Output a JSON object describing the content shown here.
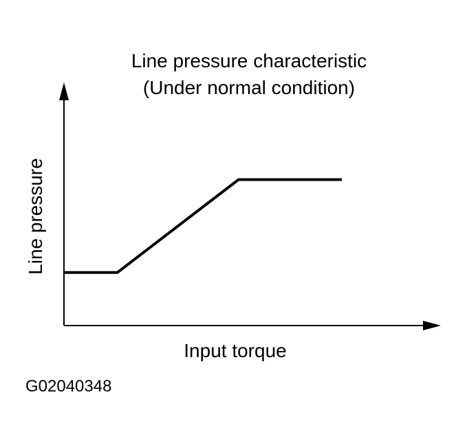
{
  "chart_data": {
    "type": "line",
    "title": "Line pressure characteristic",
    "subtitle": "(Under normal condition)",
    "xlabel": "Input torque",
    "ylabel": "Line pressure",
    "grid": false,
    "axes_have_arrows": true,
    "ticks": "none",
    "xlim": [
      0,
      100
    ],
    "ylim": [
      0,
      100
    ],
    "series": [
      {
        "x": [
          0,
          15,
          49,
          78
        ],
        "y": [
          24,
          24,
          66,
          66
        ]
      }
    ]
  },
  "figure_id": "G02040348",
  "colors": {
    "line": "#000000",
    "axis": "#000000",
    "background": "#ffffff"
  }
}
